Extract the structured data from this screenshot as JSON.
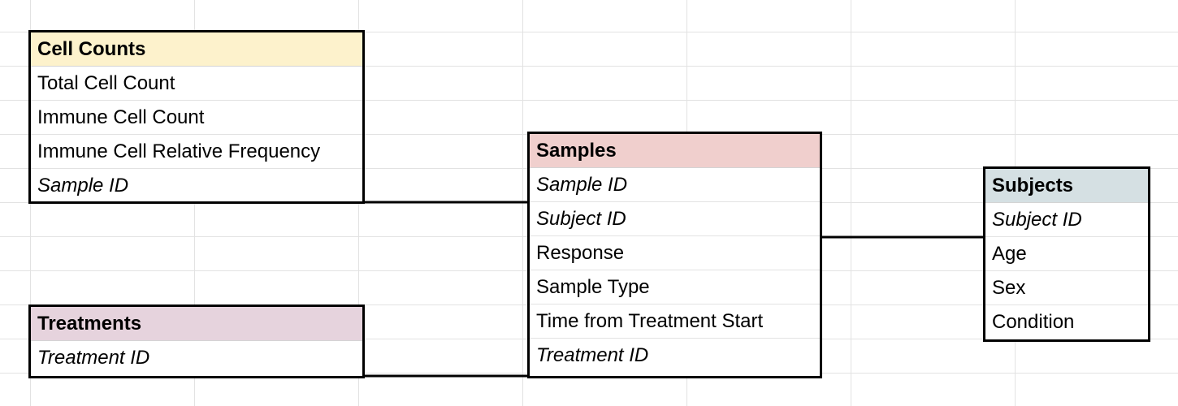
{
  "colors": {
    "cell_counts_header": "#fdf2cc",
    "samples_header": "#f0cfcd",
    "subjects_header": "#d5e0e3",
    "treatments_header": "#e6d3dd"
  },
  "entities": {
    "cell_counts": {
      "title": "Cell Counts",
      "fields": [
        "Total Cell Count",
        "Immune Cell Count",
        "Immune Cell Relative Frequency",
        "Sample ID"
      ]
    },
    "samples": {
      "title": "Samples",
      "fields": [
        "Sample ID",
        "Subject ID",
        "Response",
        "Sample Type",
        "Time from Treatment Start",
        "Treatment ID"
      ]
    },
    "subjects": {
      "title": "Subjects",
      "fields": [
        "Subject ID",
        "Age",
        "Sex",
        "Condition"
      ]
    },
    "treatments": {
      "title": "Treatments",
      "fields": [
        "Treatment ID"
      ]
    }
  }
}
